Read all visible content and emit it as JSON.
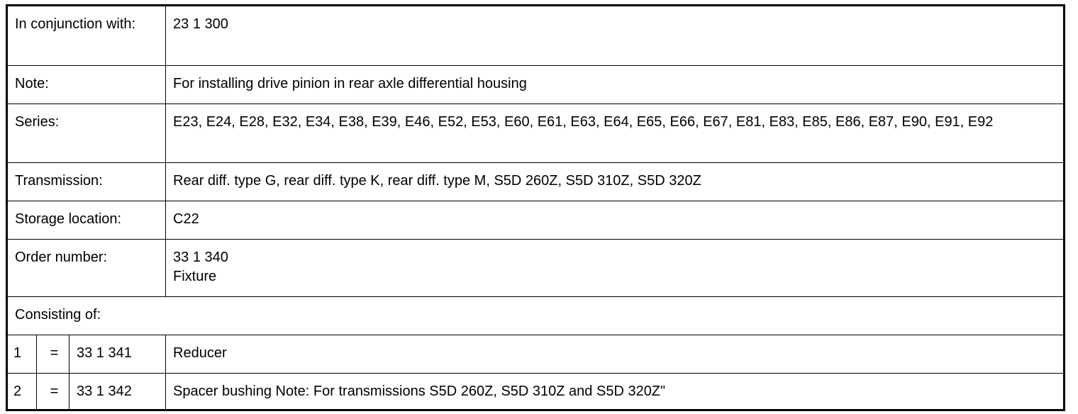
{
  "table": {
    "rows": [
      {
        "label": "In conjunction with:",
        "value": [
          "23 1 300"
        ]
      },
      {
        "label": "Note:",
        "value": [
          "For installing drive pinion in rear axle differential housing"
        ]
      },
      {
        "label": "Series:",
        "value": [
          "E23, E24, E28, E32, E34, E38, E39, E46, E52, E53, E60, E61, E63, E64, E65, E66, E67, E81, E83, E85, E86, E87, E90, E91, E92"
        ]
      },
      {
        "label": "Transmission:",
        "value": [
          "Rear diff. type G, rear diff. type K, rear diff. type M, S5D 260Z, S5D 310Z, S5D 320Z"
        ]
      },
      {
        "label": "Storage location:",
        "value": [
          "C22"
        ]
      },
      {
        "label": "Order number:",
        "value": [
          "33 1 340",
          "Fixture"
        ]
      }
    ],
    "consisting_of": {
      "label": "Consisting of:",
      "items": [
        {
          "number": "1",
          "sign": "=",
          "part": "33 1 341",
          "description": "Reducer"
        },
        {
          "number": "2",
          "sign": "=",
          "part": "33 1 342",
          "description": "Spacer bushing Note: For transmissions S5D 260Z, S5D 310Z and S5D 320Z\""
        }
      ]
    }
  }
}
